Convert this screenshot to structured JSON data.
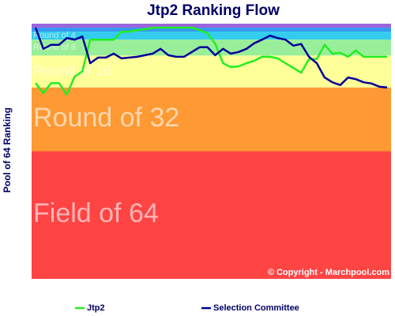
{
  "chart_data": {
    "type": "line",
    "title": "Jtp2 Ranking Flow",
    "y_label": "Pool of 64 Ranking",
    "copyright": "© Copyright - Marchpool.com",
    "ylim": [
      0,
      64
    ],
    "inverted": true,
    "bands": [
      {
        "from": 0,
        "to": 1,
        "color": "#9966dd"
      },
      {
        "from": 1,
        "to": 2,
        "color": "#3399ee"
      },
      {
        "from": 2,
        "to": 4,
        "label": "Round of 4",
        "color": "#33ccee"
      },
      {
        "from": 4,
        "to": 8,
        "label": "Round of 8",
        "color": "#99ee99"
      },
      {
        "from": 8,
        "to": 16,
        "label": "Round of 16",
        "color": "#ffff99"
      },
      {
        "from": 16,
        "to": 32,
        "label": "Round of 32",
        "color": "#ff9933"
      },
      {
        "from": 32,
        "to": 64,
        "label": "Field of 64",
        "color": "#ff4444"
      }
    ],
    "categories": [
      null,
      null,
      null,
      null,
      null,
      null,
      null,
      null,
      null,
      null,
      null,
      null,
      null,
      null,
      null,
      null,
      null,
      null,
      null,
      null,
      null,
      null,
      null,
      null,
      null,
      null,
      null,
      null,
      null,
      null,
      null,
      null,
      null,
      null,
      null,
      null,
      null,
      null,
      null,
      null,
      null,
      null,
      null,
      null,
      null,
      null
    ],
    "series": [
      {
        "name": "Jtp2",
        "color": "#22ee22",
        "values": [
          14.9,
          17.4,
          14.9,
          14.9,
          17.8,
          13.3,
          11.9,
          4,
          4,
          4,
          4,
          2,
          2,
          1.6,
          1.4,
          1,
          1,
          1,
          1,
          1,
          1,
          1.6,
          2.4,
          5,
          9.9,
          10.9,
          10.7,
          9.9,
          9.3,
          8.3,
          8.3,
          8.7,
          9.9,
          11.1,
          12.3,
          8.9,
          8.9,
          5.3,
          7.5,
          7.3,
          8.3,
          6.7,
          8.3,
          8.3,
          8.3,
          8.3
        ]
      },
      {
        "name": "Selection Committee",
        "color": "#000099",
        "values": [
          1,
          6.3,
          5.3,
          5.3,
          3.6,
          4,
          3.2,
          9.9,
          8.5,
          8.5,
          7.5,
          8.7,
          8.5,
          8.3,
          7.9,
          7.5,
          6.3,
          7.9,
          8.3,
          8.3,
          7.1,
          5.9,
          5.9,
          7.9,
          6.3,
          7.5,
          7.1,
          6.3,
          4.9,
          4,
          3,
          3.6,
          4,
          5.5,
          5.1,
          8.3,
          9.9,
          13.5,
          14.7,
          15.4,
          13.5,
          13.9,
          14.7,
          15,
          15.8,
          16
        ]
      }
    ]
  }
}
